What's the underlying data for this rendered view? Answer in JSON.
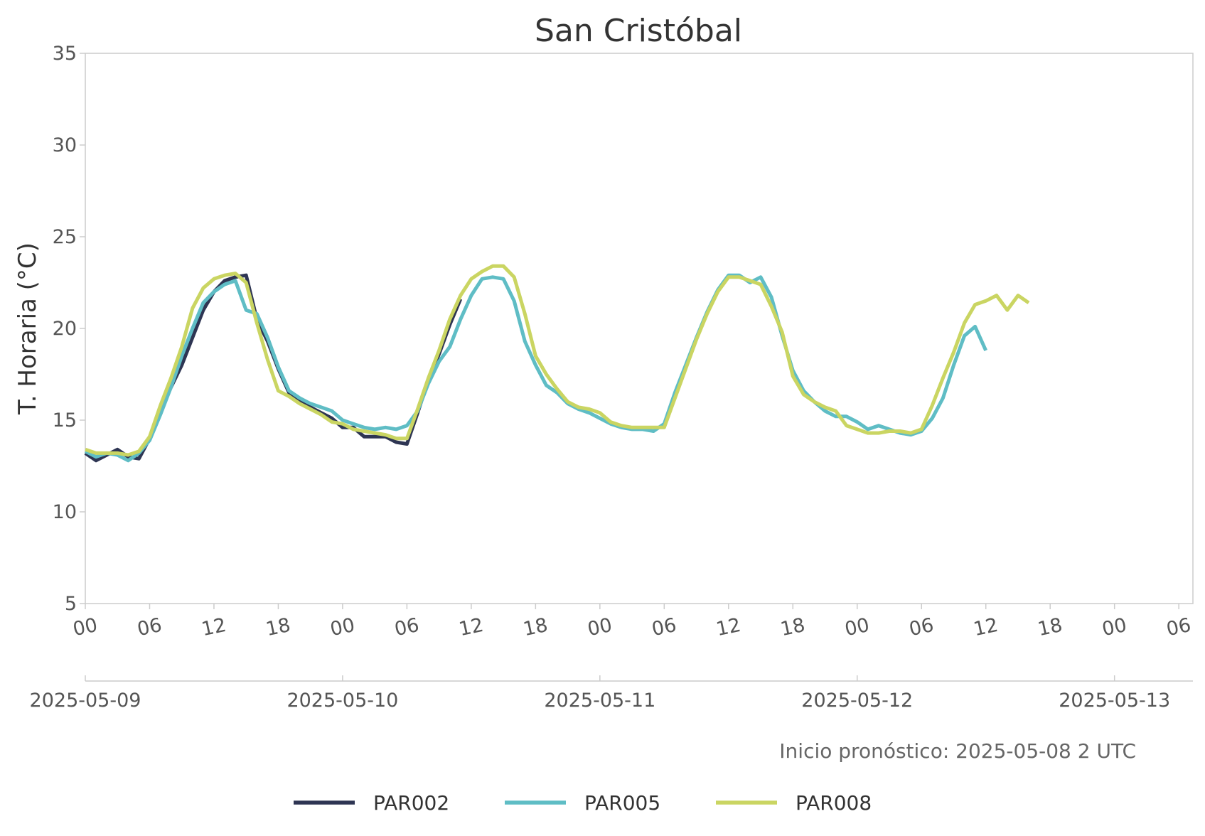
{
  "chart_data": {
    "type": "line",
    "title": "San Cristóbal",
    "ylabel": "T. Horaria (°C)",
    "ylim": [
      5,
      35
    ],
    "yticks": [
      "5",
      "10",
      "15",
      "20",
      "25",
      "30",
      "35"
    ],
    "x_start": "2025-05-09 00",
    "x_end": "2025-05-13 07",
    "hour_ticks": [
      "00",
      "06",
      "12",
      "18",
      "00",
      "06",
      "12",
      "18",
      "00",
      "06",
      "12",
      "18",
      "00",
      "06",
      "12",
      "18",
      "00",
      "06"
    ],
    "date_ticks": [
      "2025-05-09",
      "2025-05-10",
      "2025-05-11",
      "2025-05-12",
      "2025-05-13"
    ],
    "annotation": "Inicio pronóstico: 2025-05-08 2 UTC",
    "grid": false,
    "legend_position": "bottom",
    "series": [
      {
        "name": "PAR002",
        "color": "#2e3553",
        "x": [
          "2025-05-09 00",
          "2025-05-09 01",
          "2025-05-09 02",
          "2025-05-09 03",
          "2025-05-09 04",
          "2025-05-09 05",
          "2025-05-09 06",
          "2025-05-09 07",
          "2025-05-09 08",
          "2025-05-09 09",
          "2025-05-09 10",
          "2025-05-09 11",
          "2025-05-09 12",
          "2025-05-09 13",
          "2025-05-09 14",
          "2025-05-09 15",
          "2025-05-09 16",
          "2025-05-09 17",
          "2025-05-09 18",
          "2025-05-09 19",
          "2025-05-09 20",
          "2025-05-09 21",
          "2025-05-09 22",
          "2025-05-09 23",
          "2025-05-10 00",
          "2025-05-10 01",
          "2025-05-10 02",
          "2025-05-10 03",
          "2025-05-10 04",
          "2025-05-10 05",
          "2025-05-10 06",
          "2025-05-10 07",
          "2025-05-10 08",
          "2025-05-10 09",
          "2025-05-10 10",
          "2025-05-10 11"
        ],
        "values": [
          13.2,
          12.8,
          13.1,
          13.4,
          13.0,
          12.9,
          14.0,
          15.5,
          16.8,
          18.0,
          19.5,
          21.0,
          22.0,
          22.6,
          22.8,
          22.9,
          20.5,
          19.3,
          17.8,
          16.5,
          16.1,
          15.7,
          15.4,
          15.1,
          14.6,
          14.6,
          14.1,
          14.1,
          14.1,
          13.8,
          13.7,
          15.4,
          17.2,
          18.6,
          20.2,
          21.6
        ]
      },
      {
        "name": "PAR005",
        "color": "#5fbdc5",
        "x": [
          "2025-05-09 00",
          "2025-05-09 01",
          "2025-05-09 02",
          "2025-05-09 03",
          "2025-05-09 04",
          "2025-05-09 05",
          "2025-05-09 06",
          "2025-05-09 07",
          "2025-05-09 08",
          "2025-05-09 09",
          "2025-05-09 10",
          "2025-05-09 11",
          "2025-05-09 12",
          "2025-05-09 13",
          "2025-05-09 14",
          "2025-05-09 15",
          "2025-05-09 16",
          "2025-05-09 17",
          "2025-05-09 18",
          "2025-05-09 19",
          "2025-05-09 20",
          "2025-05-09 21",
          "2025-05-09 22",
          "2025-05-09 23",
          "2025-05-10 00",
          "2025-05-10 01",
          "2025-05-10 02",
          "2025-05-10 03",
          "2025-05-10 04",
          "2025-05-10 05",
          "2025-05-10 06",
          "2025-05-10 07",
          "2025-05-10 08",
          "2025-05-10 09",
          "2025-05-10 10",
          "2025-05-10 11",
          "2025-05-10 12",
          "2025-05-10 13",
          "2025-05-10 14",
          "2025-05-10 15",
          "2025-05-10 16",
          "2025-05-10 17",
          "2025-05-10 18",
          "2025-05-10 19",
          "2025-05-10 20",
          "2025-05-10 21",
          "2025-05-10 22",
          "2025-05-10 23",
          "2025-05-11 00",
          "2025-05-11 01",
          "2025-05-11 02",
          "2025-05-11 03",
          "2025-05-11 04",
          "2025-05-11 05",
          "2025-05-11 06",
          "2025-05-11 07",
          "2025-05-11 08",
          "2025-05-11 09",
          "2025-05-11 10",
          "2025-05-11 11",
          "2025-05-11 12",
          "2025-05-11 13",
          "2025-05-11 14",
          "2025-05-11 15",
          "2025-05-11 16",
          "2025-05-11 17",
          "2025-05-11 18",
          "2025-05-11 19",
          "2025-05-11 20",
          "2025-05-11 21",
          "2025-05-11 22",
          "2025-05-11 23",
          "2025-05-12 00",
          "2025-05-12 01",
          "2025-05-12 02",
          "2025-05-12 03",
          "2025-05-12 04",
          "2025-05-12 05",
          "2025-05-12 06",
          "2025-05-12 07",
          "2025-05-12 08",
          "2025-05-12 09",
          "2025-05-12 10",
          "2025-05-12 11",
          "2025-05-12 12"
        ],
        "values": [
          13.3,
          13.0,
          13.2,
          13.1,
          12.8,
          13.2,
          13.9,
          15.3,
          16.8,
          18.5,
          20.0,
          21.4,
          22.0,
          22.4,
          22.6,
          21.0,
          20.8,
          19.5,
          17.9,
          16.6,
          16.2,
          15.9,
          15.7,
          15.5,
          15.0,
          14.8,
          14.6,
          14.5,
          14.6,
          14.5,
          14.7,
          15.5,
          17.0,
          18.2,
          19.0,
          20.5,
          21.8,
          22.7,
          22.8,
          22.7,
          21.5,
          19.3,
          18.0,
          16.9,
          16.5,
          15.9,
          15.6,
          15.4,
          15.1,
          14.8,
          14.6,
          14.5,
          14.5,
          14.4,
          14.8,
          16.5,
          18.0,
          19.5,
          20.9,
          22.1,
          22.9,
          22.9,
          22.5,
          22.8,
          21.7,
          19.6,
          17.7,
          16.6,
          16.0,
          15.5,
          15.2,
          15.2,
          14.9,
          14.5,
          14.7,
          14.5,
          14.3,
          14.2,
          14.4,
          15.1,
          16.2,
          18.0,
          19.6,
          20.1,
          18.8
        ]
      },
      {
        "name": "PAR008",
        "color": "#cad562",
        "x": [
          "2025-05-09 00",
          "2025-05-09 01",
          "2025-05-09 02",
          "2025-05-09 03",
          "2025-05-09 04",
          "2025-05-09 05",
          "2025-05-09 06",
          "2025-05-09 07",
          "2025-05-09 08",
          "2025-05-09 09",
          "2025-05-09 10",
          "2025-05-09 11",
          "2025-05-09 12",
          "2025-05-09 13",
          "2025-05-09 14",
          "2025-05-09 15",
          "2025-05-09 16",
          "2025-05-09 17",
          "2025-05-09 18",
          "2025-05-09 19",
          "2025-05-09 20",
          "2025-05-09 21",
          "2025-05-09 22",
          "2025-05-09 23",
          "2025-05-10 00",
          "2025-05-10 01",
          "2025-05-10 02",
          "2025-05-10 03",
          "2025-05-10 04",
          "2025-05-10 05",
          "2025-05-10 06",
          "2025-05-10 07",
          "2025-05-10 08",
          "2025-05-10 09",
          "2025-05-10 10",
          "2025-05-10 11",
          "2025-05-10 12",
          "2025-05-10 13",
          "2025-05-10 14",
          "2025-05-10 15",
          "2025-05-10 16",
          "2025-05-10 17",
          "2025-05-10 18",
          "2025-05-10 19",
          "2025-05-10 20",
          "2025-05-10 21",
          "2025-05-10 22",
          "2025-05-10 23",
          "2025-05-11 00",
          "2025-05-11 01",
          "2025-05-11 02",
          "2025-05-11 03",
          "2025-05-11 04",
          "2025-05-11 05",
          "2025-05-11 06",
          "2025-05-11 07",
          "2025-05-11 08",
          "2025-05-11 09",
          "2025-05-11 10",
          "2025-05-11 11",
          "2025-05-11 12",
          "2025-05-11 13",
          "2025-05-11 14",
          "2025-05-11 15",
          "2025-05-11 16",
          "2025-05-11 17",
          "2025-05-11 18",
          "2025-05-11 19",
          "2025-05-11 20",
          "2025-05-11 21",
          "2025-05-11 22",
          "2025-05-11 23",
          "2025-05-12 00",
          "2025-05-12 01",
          "2025-05-12 02",
          "2025-05-12 03",
          "2025-05-12 04",
          "2025-05-12 05",
          "2025-05-12 06",
          "2025-05-12 07",
          "2025-05-12 08",
          "2025-05-12 09",
          "2025-05-12 10",
          "2025-05-12 11",
          "2025-05-12 12",
          "2025-05-12 13",
          "2025-05-12 14",
          "2025-05-12 15",
          "2025-05-12 16"
        ],
        "values": [
          13.4,
          13.2,
          13.2,
          13.2,
          13.1,
          13.3,
          14.1,
          15.8,
          17.3,
          19.0,
          21.1,
          22.2,
          22.7,
          22.9,
          23.0,
          22.5,
          20.3,
          18.3,
          16.6,
          16.3,
          15.9,
          15.6,
          15.3,
          14.9,
          14.8,
          14.5,
          14.4,
          14.3,
          14.2,
          14.0,
          14.0,
          15.6,
          17.3,
          18.8,
          20.5,
          21.8,
          22.7,
          23.1,
          23.4,
          23.4,
          22.8,
          20.8,
          18.5,
          17.5,
          16.7,
          16.0,
          15.7,
          15.6,
          15.4,
          14.9,
          14.7,
          14.6,
          14.6,
          14.6,
          14.6,
          16.2,
          17.8,
          19.4,
          20.8,
          22.0,
          22.8,
          22.8,
          22.6,
          22.4,
          21.2,
          19.8,
          17.4,
          16.4,
          16.0,
          15.7,
          15.5,
          14.7,
          14.5,
          14.3,
          14.3,
          14.4,
          14.4,
          14.3,
          14.5,
          15.8,
          17.3,
          18.7,
          20.3,
          21.3,
          21.5,
          21.8,
          21.0,
          21.8,
          21.4
        ]
      }
    ]
  }
}
